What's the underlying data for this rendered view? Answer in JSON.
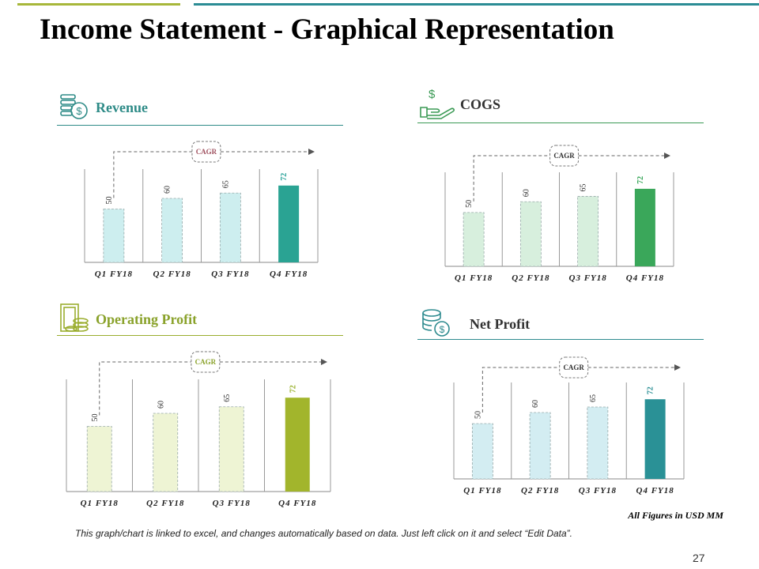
{
  "slide": {
    "title": "Income Statement - Graphical Representation",
    "units_note": "All Figures in USD MM",
    "footer_note": "This graph/chart is linked to excel, and changes automatically based on data. Just left click on it and select “Edit Data”.",
    "page_number": "27",
    "colors": {
      "top_bar_left": "#a7b73a",
      "top_bar_right": "#2b8c94"
    }
  },
  "panels": [
    {
      "title": "Revenue",
      "icon": "coins-dollar-icon",
      "accent": "#2e8b87",
      "title_color": "#2e8b87",
      "cagr_color": "#a05260",
      "label_color": "#2ba39a"
    },
    {
      "title": "COGS",
      "icon": "hand-dollar-icon",
      "accent": "#3b9a55",
      "title_color": "#333333",
      "cagr_color": "#333333",
      "label_color": "#3aa75a"
    },
    {
      "title": "Operating  Profit",
      "icon": "cash-stack-icon",
      "accent": "#9aad2e",
      "title_color": "#8aa22b",
      "cagr_color": "#8aa22b",
      "label_color": "#9ab22e"
    },
    {
      "title": "Net Profit",
      "icon": "coin-stack-dollar-icon",
      "accent": "#2e8b8f",
      "title_color": "#333333",
      "cagr_color": "#333333",
      "label_color": "#2a8f94"
    }
  ],
  "chart_data": [
    {
      "type": "bar",
      "title": "Revenue",
      "categories": [
        "Q1 FY18",
        "Q2 FY18",
        "Q3 FY18",
        "Q4 FY18"
      ],
      "values": [
        50,
        60,
        65,
        72
      ],
      "annotation": "CAGR",
      "ylim": [
        0,
        80
      ],
      "colors": {
        "light": "#cdeeef",
        "highlight": "#2aa393"
      }
    },
    {
      "type": "bar",
      "title": "COGS",
      "categories": [
        "Q1 FY18",
        "Q2 FY18",
        "Q3 FY18",
        "Q4 FY18"
      ],
      "values": [
        50,
        60,
        65,
        72
      ],
      "annotation": "CAGR",
      "ylim": [
        0,
        80
      ],
      "colors": {
        "light": "#d7efdd",
        "highlight": "#3aa75a"
      }
    },
    {
      "type": "bar",
      "title": "Operating  Profit",
      "categories": [
        "Q1 FY18",
        "Q2 FY18",
        "Q3 FY18",
        "Q4 FY18"
      ],
      "values": [
        50,
        60,
        65,
        72
      ],
      "annotation": "CAGR",
      "ylim": [
        0,
        80
      ],
      "colors": {
        "light": "#eef4d4",
        "highlight": "#a2b52c"
      }
    },
    {
      "type": "bar",
      "title": "Net Profit",
      "categories": [
        "Q1 FY18",
        "Q2 FY18",
        "Q3 FY18",
        "Q4 FY18"
      ],
      "values": [
        50,
        60,
        65,
        72
      ],
      "annotation": "CAGR",
      "ylim": [
        0,
        80
      ],
      "colors": {
        "light": "#d3edf2",
        "highlight": "#2a9196"
      }
    }
  ]
}
